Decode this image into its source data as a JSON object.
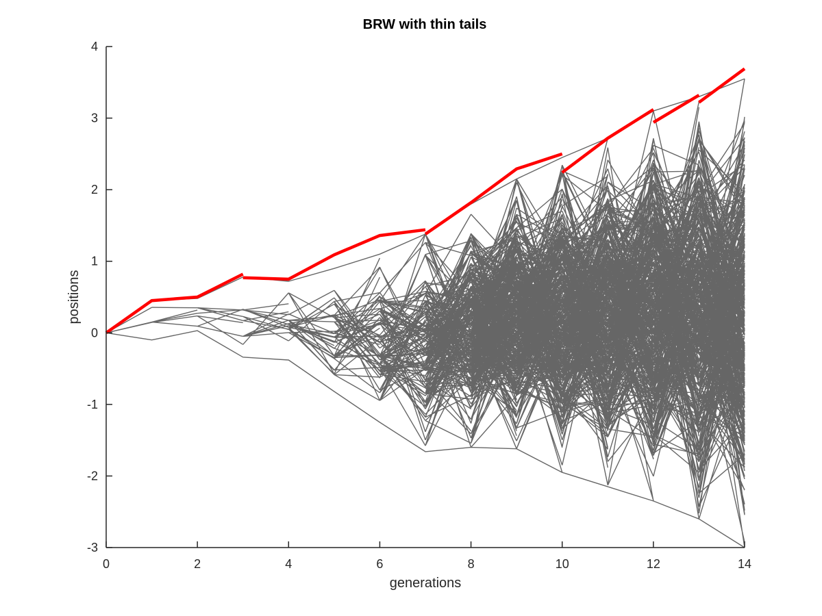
{
  "chart_data": {
    "type": "line",
    "title": "BRW with thin tails",
    "xlabel": "generations",
    "ylabel": "positions",
    "xlim": [
      0,
      14
    ],
    "ylim": [
      -3,
      4
    ],
    "xticks": [
      0,
      2,
      4,
      6,
      8,
      10,
      12,
      14
    ],
    "yticks": [
      -3,
      -2,
      -1,
      0,
      1,
      2,
      3,
      4
    ],
    "grid": false,
    "legend": "none",
    "colors": {
      "paths": "#666666",
      "max_path": "#ff0000",
      "axes": "#262626"
    },
    "envelope": {
      "x": [
        0,
        1,
        2,
        3,
        4,
        5,
        6,
        7,
        8,
        9,
        10,
        11,
        12,
        13,
        14
      ],
      "upper": [
        0,
        0.45,
        0.48,
        0.78,
        0.72,
        0.9,
        1.1,
        1.38,
        1.8,
        2.15,
        2.45,
        2.72,
        3.1,
        3.3,
        3.55
      ],
      "lower": [
        0,
        -0.1,
        0.03,
        -0.34,
        -0.38,
        -0.82,
        -1.25,
        -1.66,
        -1.6,
        -1.62,
        -1.95,
        -2.15,
        -2.35,
        -2.6,
        -3.0
      ]
    },
    "max_path": {
      "segments": [
        [
          [
            0,
            0
          ],
          [
            1,
            0.45
          ],
          [
            2,
            0.5
          ],
          [
            3,
            0.82
          ]
        ],
        [
          [
            3,
            0.77
          ],
          [
            4,
            0.75
          ],
          [
            5,
            1.09
          ],
          [
            6,
            1.36
          ],
          [
            7,
            1.44
          ]
        ],
        [
          [
            7,
            1.38
          ],
          [
            8,
            1.82
          ],
          [
            9,
            2.29
          ],
          [
            10,
            2.5
          ]
        ],
        [
          [
            10,
            2.24
          ],
          [
            11,
            2.72
          ],
          [
            12,
            3.12
          ]
        ],
        [
          [
            12,
            2.94
          ],
          [
            13,
            3.32
          ]
        ],
        [
          [
            13,
            3.22
          ],
          [
            14,
            3.69
          ]
        ]
      ]
    }
  }
}
